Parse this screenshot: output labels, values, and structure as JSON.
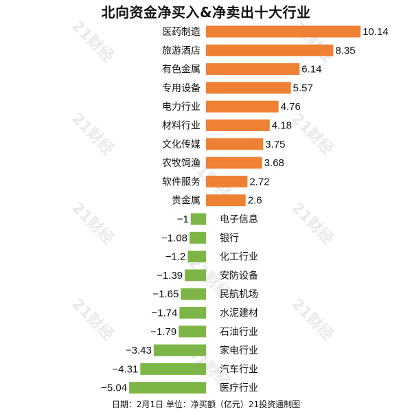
{
  "chart_data": {
    "type": "bar",
    "orientation": "horizontal",
    "title": "北向资金净买入&净卖出十大行业",
    "categories": [
      "医药制造",
      "旅游酒店",
      "有色金属",
      "专用设备",
      "电力行业",
      "材料行业",
      "文化传媒",
      "农牧饲渔",
      "软件服务",
      "贵金属",
      "电子信息",
      "银行",
      "化工行业",
      "安防设备",
      "民航机场",
      "水泥建材",
      "石油行业",
      "家电行业",
      "汽车行业",
      "医疗行业"
    ],
    "values": [
      10.14,
      8.35,
      6.14,
      5.57,
      4.76,
      4.18,
      3.75,
      3.68,
      2.72,
      2.6,
      -1,
      -1.08,
      -1.2,
      -1.39,
      -1.65,
      -1.74,
      -1.79,
      -3.43,
      -4.31,
      -5.04
    ],
    "value_labels": [
      "10.14",
      "8.35",
      "6.14",
      "5.57",
      "4.76",
      "4.18",
      "3.75",
      "3.68",
      "2.72",
      "2.6",
      "−1",
      "−1.08",
      "−1.2",
      "−1.39",
      "−1.65",
      "−1.74",
      "−1.79",
      "−3.43",
      "−4.31",
      "−5.04"
    ],
    "colors": {
      "positive": "#ee8133",
      "negative": "#7db646"
    },
    "grid": false,
    "legend": "none"
  },
  "watermark": "21财经",
  "footer": "日期：2月1日 单位：净买额（亿元）21投资通制图"
}
